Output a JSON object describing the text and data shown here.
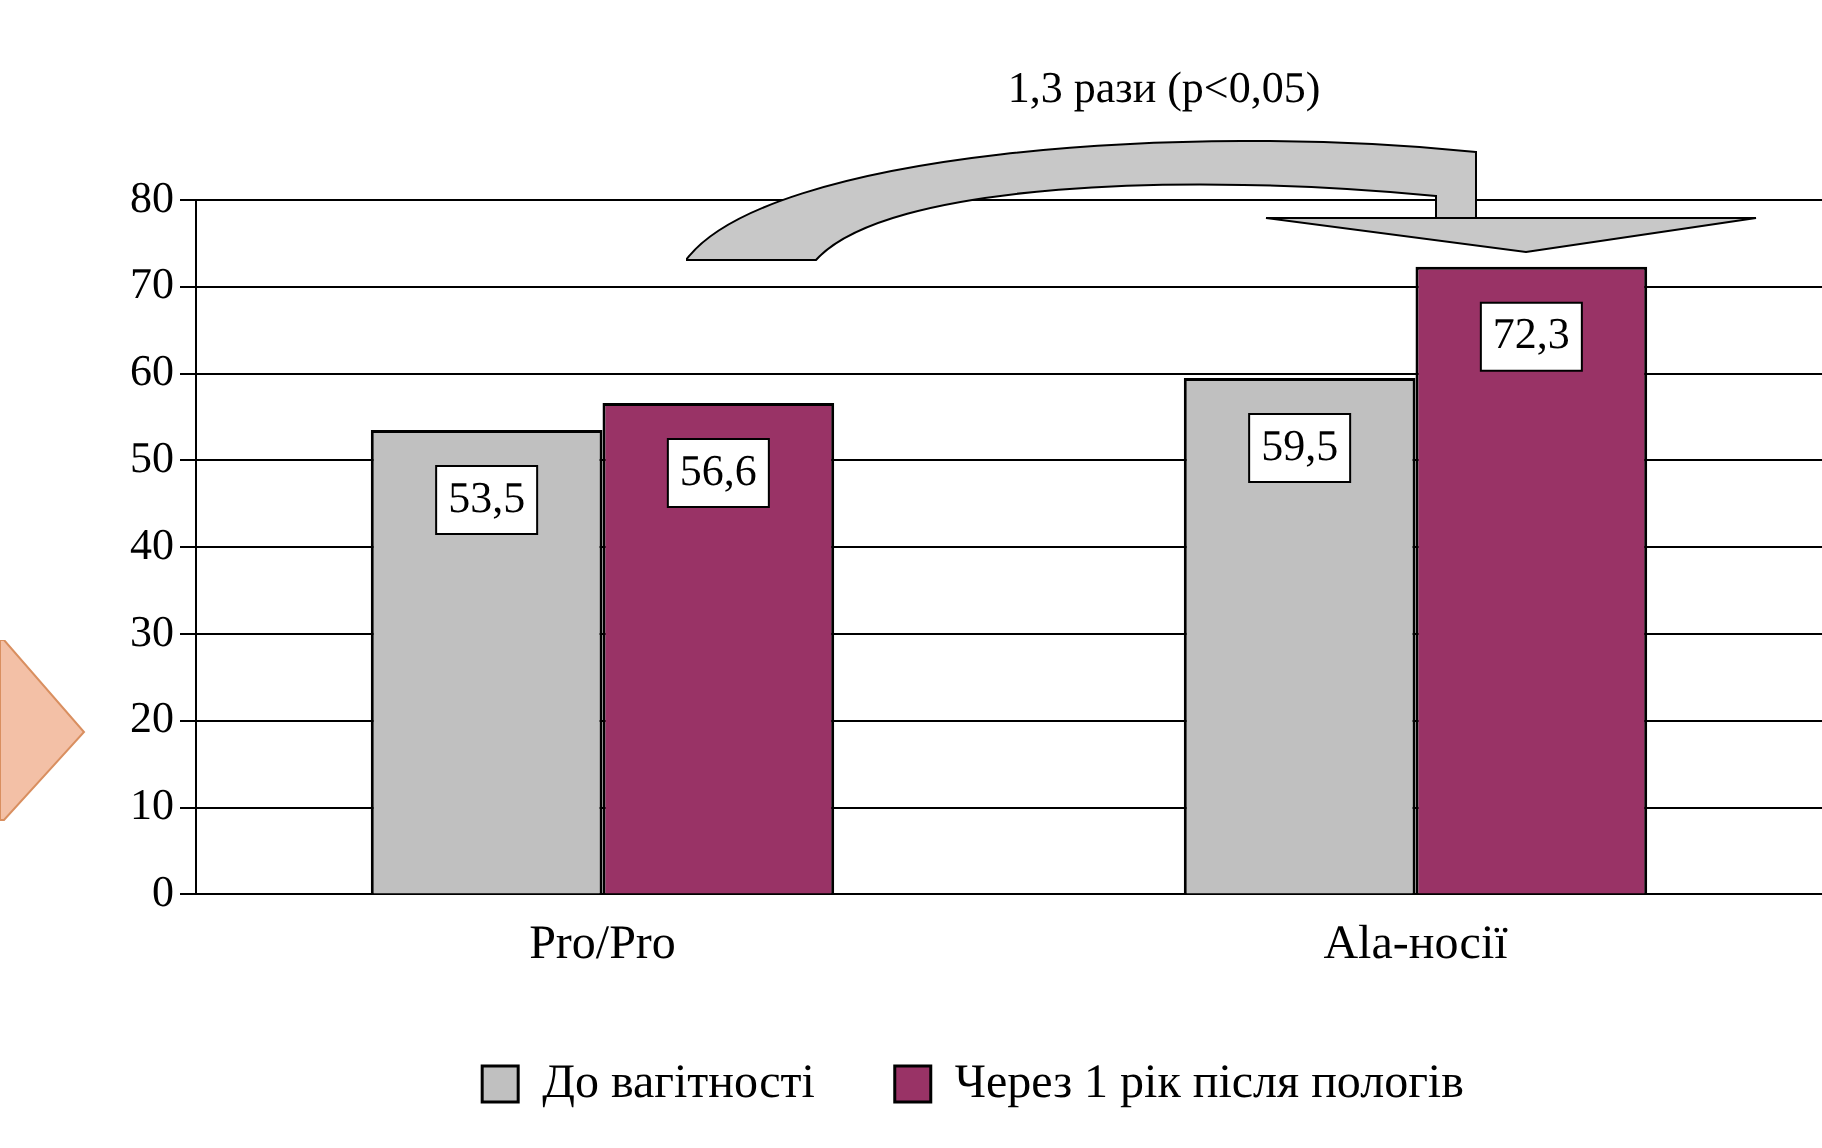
{
  "chart_data": {
    "type": "bar",
    "categories": [
      "Pro/Pro",
      "Ala-носії"
    ],
    "series": [
      {
        "name": "До вагітності",
        "color": "#c0c0c0",
        "values": [
          53.5,
          59.5
        ],
        "value_labels": [
          "53,5",
          "59,5"
        ]
      },
      {
        "name": "Через 1 рік після пологів",
        "color": "#993366",
        "values": [
          56.6,
          72.3
        ],
        "value_labels": [
          "56,6",
          "72,3"
        ]
      }
    ],
    "ylim": [
      0,
      80
    ],
    "yticks": [
      0,
      10,
      20,
      30,
      40,
      50,
      60,
      70,
      80
    ],
    "grid": "y",
    "legend": "bottom",
    "annotations": [
      "1,3 рази (p<0,05)"
    ]
  }
}
